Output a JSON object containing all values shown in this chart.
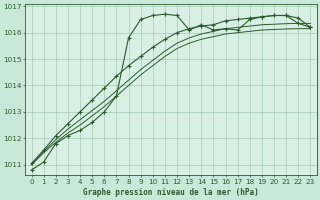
{
  "title": "Graphe pression niveau de la mer (hPa)",
  "background_color": "#c8e8d8",
  "plot_bg_color": "#d8f0e4",
  "grid_color": "#a8c8b8",
  "line_color": "#2d5a2d",
  "text_color": "#2d5a2d",
  "xlim": [
    -0.5,
    23.5
  ],
  "ylim": [
    1010.6,
    1017.1
  ],
  "yticks": [
    1011,
    1012,
    1013,
    1014,
    1015,
    1016,
    1017
  ],
  "xticks": [
    0,
    1,
    2,
    3,
    4,
    5,
    6,
    7,
    8,
    9,
    10,
    11,
    12,
    13,
    14,
    15,
    16,
    17,
    18,
    19,
    20,
    21,
    22,
    23
  ],
  "series": [
    {
      "values": [
        1010.8,
        1011.1,
        1011.8,
        1012.1,
        1012.3,
        1012.6,
        1013.0,
        1013.6,
        1015.8,
        1016.5,
        1016.65,
        1016.7,
        1016.65,
        1016.1,
        1016.3,
        1016.1,
        1016.15,
        1016.1,
        1016.5,
        1016.6,
        1016.65,
        1016.65,
        1016.35,
        1016.2
      ],
      "marker": "+",
      "ms": 3.0,
      "lw": 0.8,
      "ls": "-"
    },
    {
      "values": [
        1011.0,
        1011.45,
        1011.85,
        1012.2,
        1012.5,
        1012.85,
        1013.2,
        1013.6,
        1014.0,
        1014.4,
        1014.75,
        1015.1,
        1015.4,
        1015.6,
        1015.75,
        1015.85,
        1015.95,
        1016.0,
        1016.05,
        1016.1,
        1016.12,
        1016.14,
        1016.15,
        1016.15
      ],
      "marker": null,
      "ms": 0,
      "lw": 0.7,
      "ls": "-"
    },
    {
      "values": [
        1011.0,
        1011.5,
        1011.95,
        1012.35,
        1012.7,
        1013.05,
        1013.4,
        1013.8,
        1014.2,
        1014.6,
        1014.95,
        1015.3,
        1015.6,
        1015.8,
        1015.95,
        1016.05,
        1016.15,
        1016.2,
        1016.25,
        1016.3,
        1016.32,
        1016.34,
        1016.35,
        1016.35
      ],
      "marker": null,
      "ms": 0,
      "lw": 0.7,
      "ls": "-"
    },
    {
      "values": [
        1011.05,
        1011.55,
        1012.1,
        1012.55,
        1013.0,
        1013.45,
        1013.9,
        1014.35,
        1014.75,
        1015.1,
        1015.45,
        1015.75,
        1016.0,
        1016.15,
        1016.25,
        1016.3,
        1016.45,
        1016.5,
        1016.55,
        1016.6,
        1016.65,
        1016.65,
        1016.55,
        1016.2
      ],
      "marker": "+",
      "ms": 3.0,
      "lw": 0.8,
      "ls": "-"
    }
  ]
}
